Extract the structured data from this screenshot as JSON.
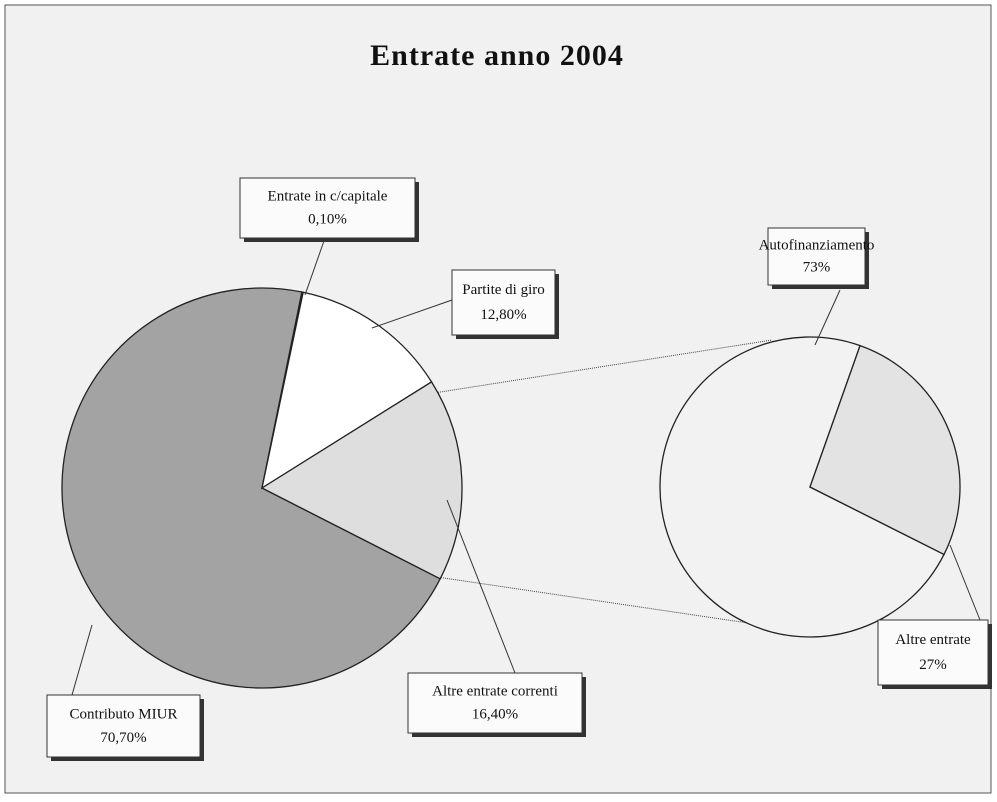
{
  "chart_data": [
    {
      "type": "pie",
      "title": "Entrate anno 2004",
      "categories": [
        "Contributo  MIUR",
        "Entrate in c/capitale",
        "Partite di giro",
        "Altre entrate correnti"
      ],
      "values": [
        70.7,
        0.1,
        12.8,
        16.4
      ],
      "value_labels": [
        "70,70%",
        "0,10%",
        "12,80%",
        "16,40%"
      ],
      "colors": [
        "#a3a3a3",
        "#ffffff",
        "#ffffff",
        "#dedede"
      ]
    },
    {
      "type": "pie",
      "categories": [
        "Autofinanziamento",
        "Altre entrate"
      ],
      "values": [
        73,
        27
      ],
      "value_labels": [
        "73%",
        "27%"
      ],
      "colors": [
        "#f2f2f2",
        "#e3e3e3"
      ]
    }
  ]
}
